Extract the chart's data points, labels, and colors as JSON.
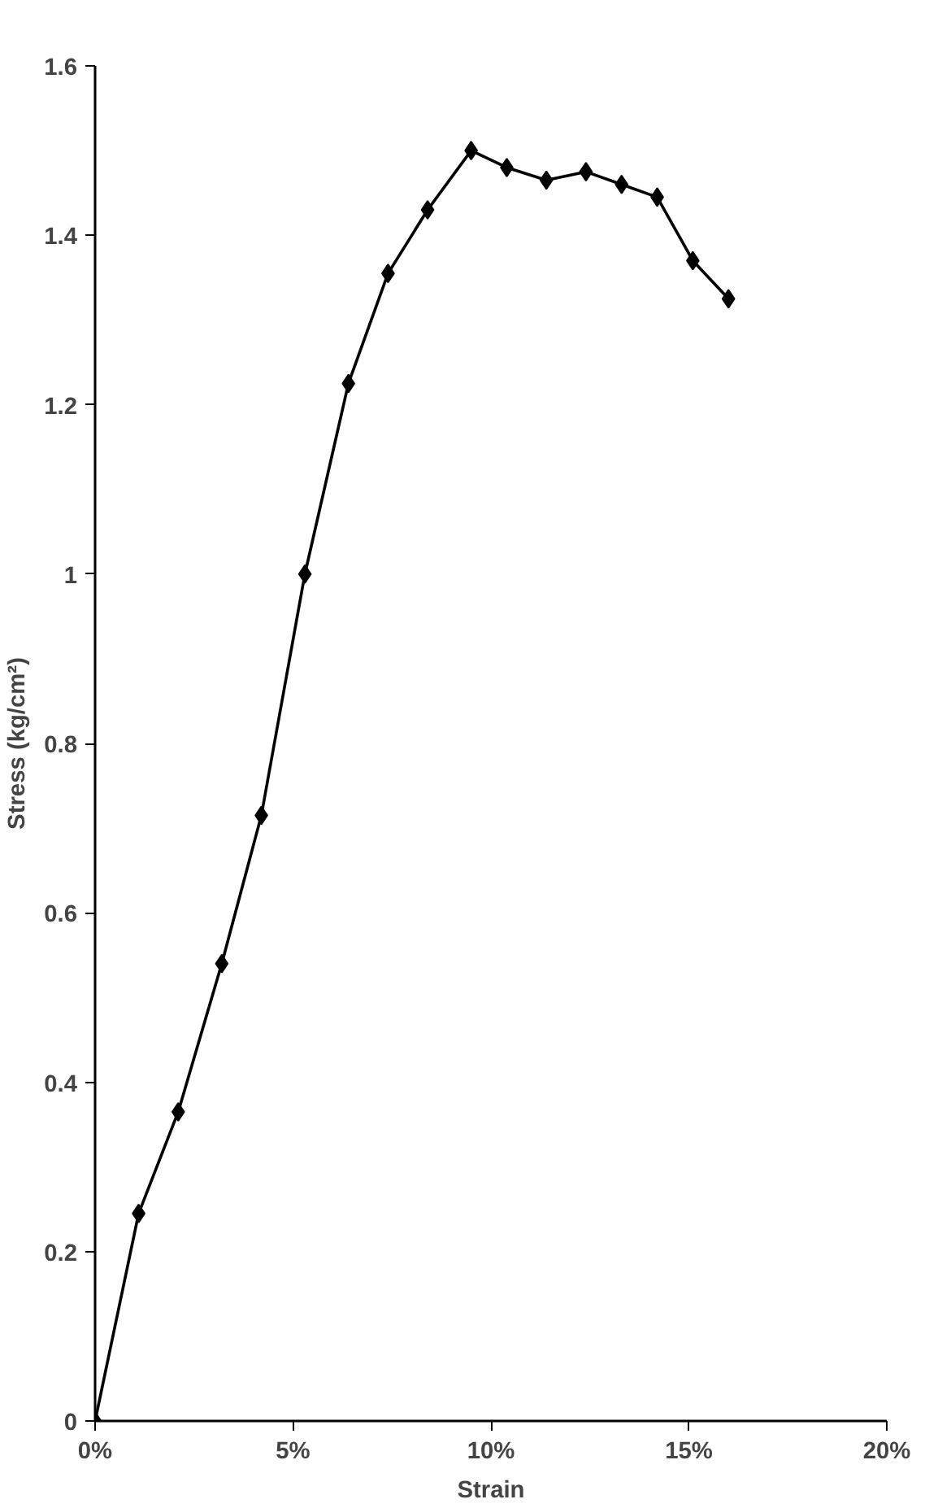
{
  "chart_data": {
    "type": "line",
    "xlabel": "Strain",
    "ylabel": "Stress (kg/cm²)",
    "x": [
      0,
      1.1,
      2.1,
      3.2,
      4.2,
      5.3,
      6.4,
      7.4,
      8.4,
      9.5,
      10.4,
      11.4,
      12.4,
      13.3,
      14.2,
      15.1,
      16.0
    ],
    "series": [
      {
        "color": "#000000",
        "values": [
          0,
          0.245,
          0.365,
          0.54,
          0.715,
          1.0,
          1.225,
          1.355,
          1.43,
          1.5,
          1.48,
          1.465,
          1.475,
          1.46,
          1.445,
          1.37,
          1.325
        ]
      }
    ],
    "xlim": [
      0,
      20
    ],
    "xticks": [
      {
        "value": 0,
        "label": "0%"
      },
      {
        "value": 5,
        "label": "5%"
      },
      {
        "value": 10,
        "label": "10%"
      },
      {
        "value": 15,
        "label": "15%"
      },
      {
        "value": 20,
        "label": "20%"
      }
    ],
    "ylim": [
      0,
      1.6
    ],
    "yticks": [
      0,
      0.2,
      0.4,
      0.6,
      0.8,
      1,
      1.2,
      1.4,
      1.6
    ],
    "grid": false,
    "marker": "diamond",
    "line_style": "solid"
  }
}
